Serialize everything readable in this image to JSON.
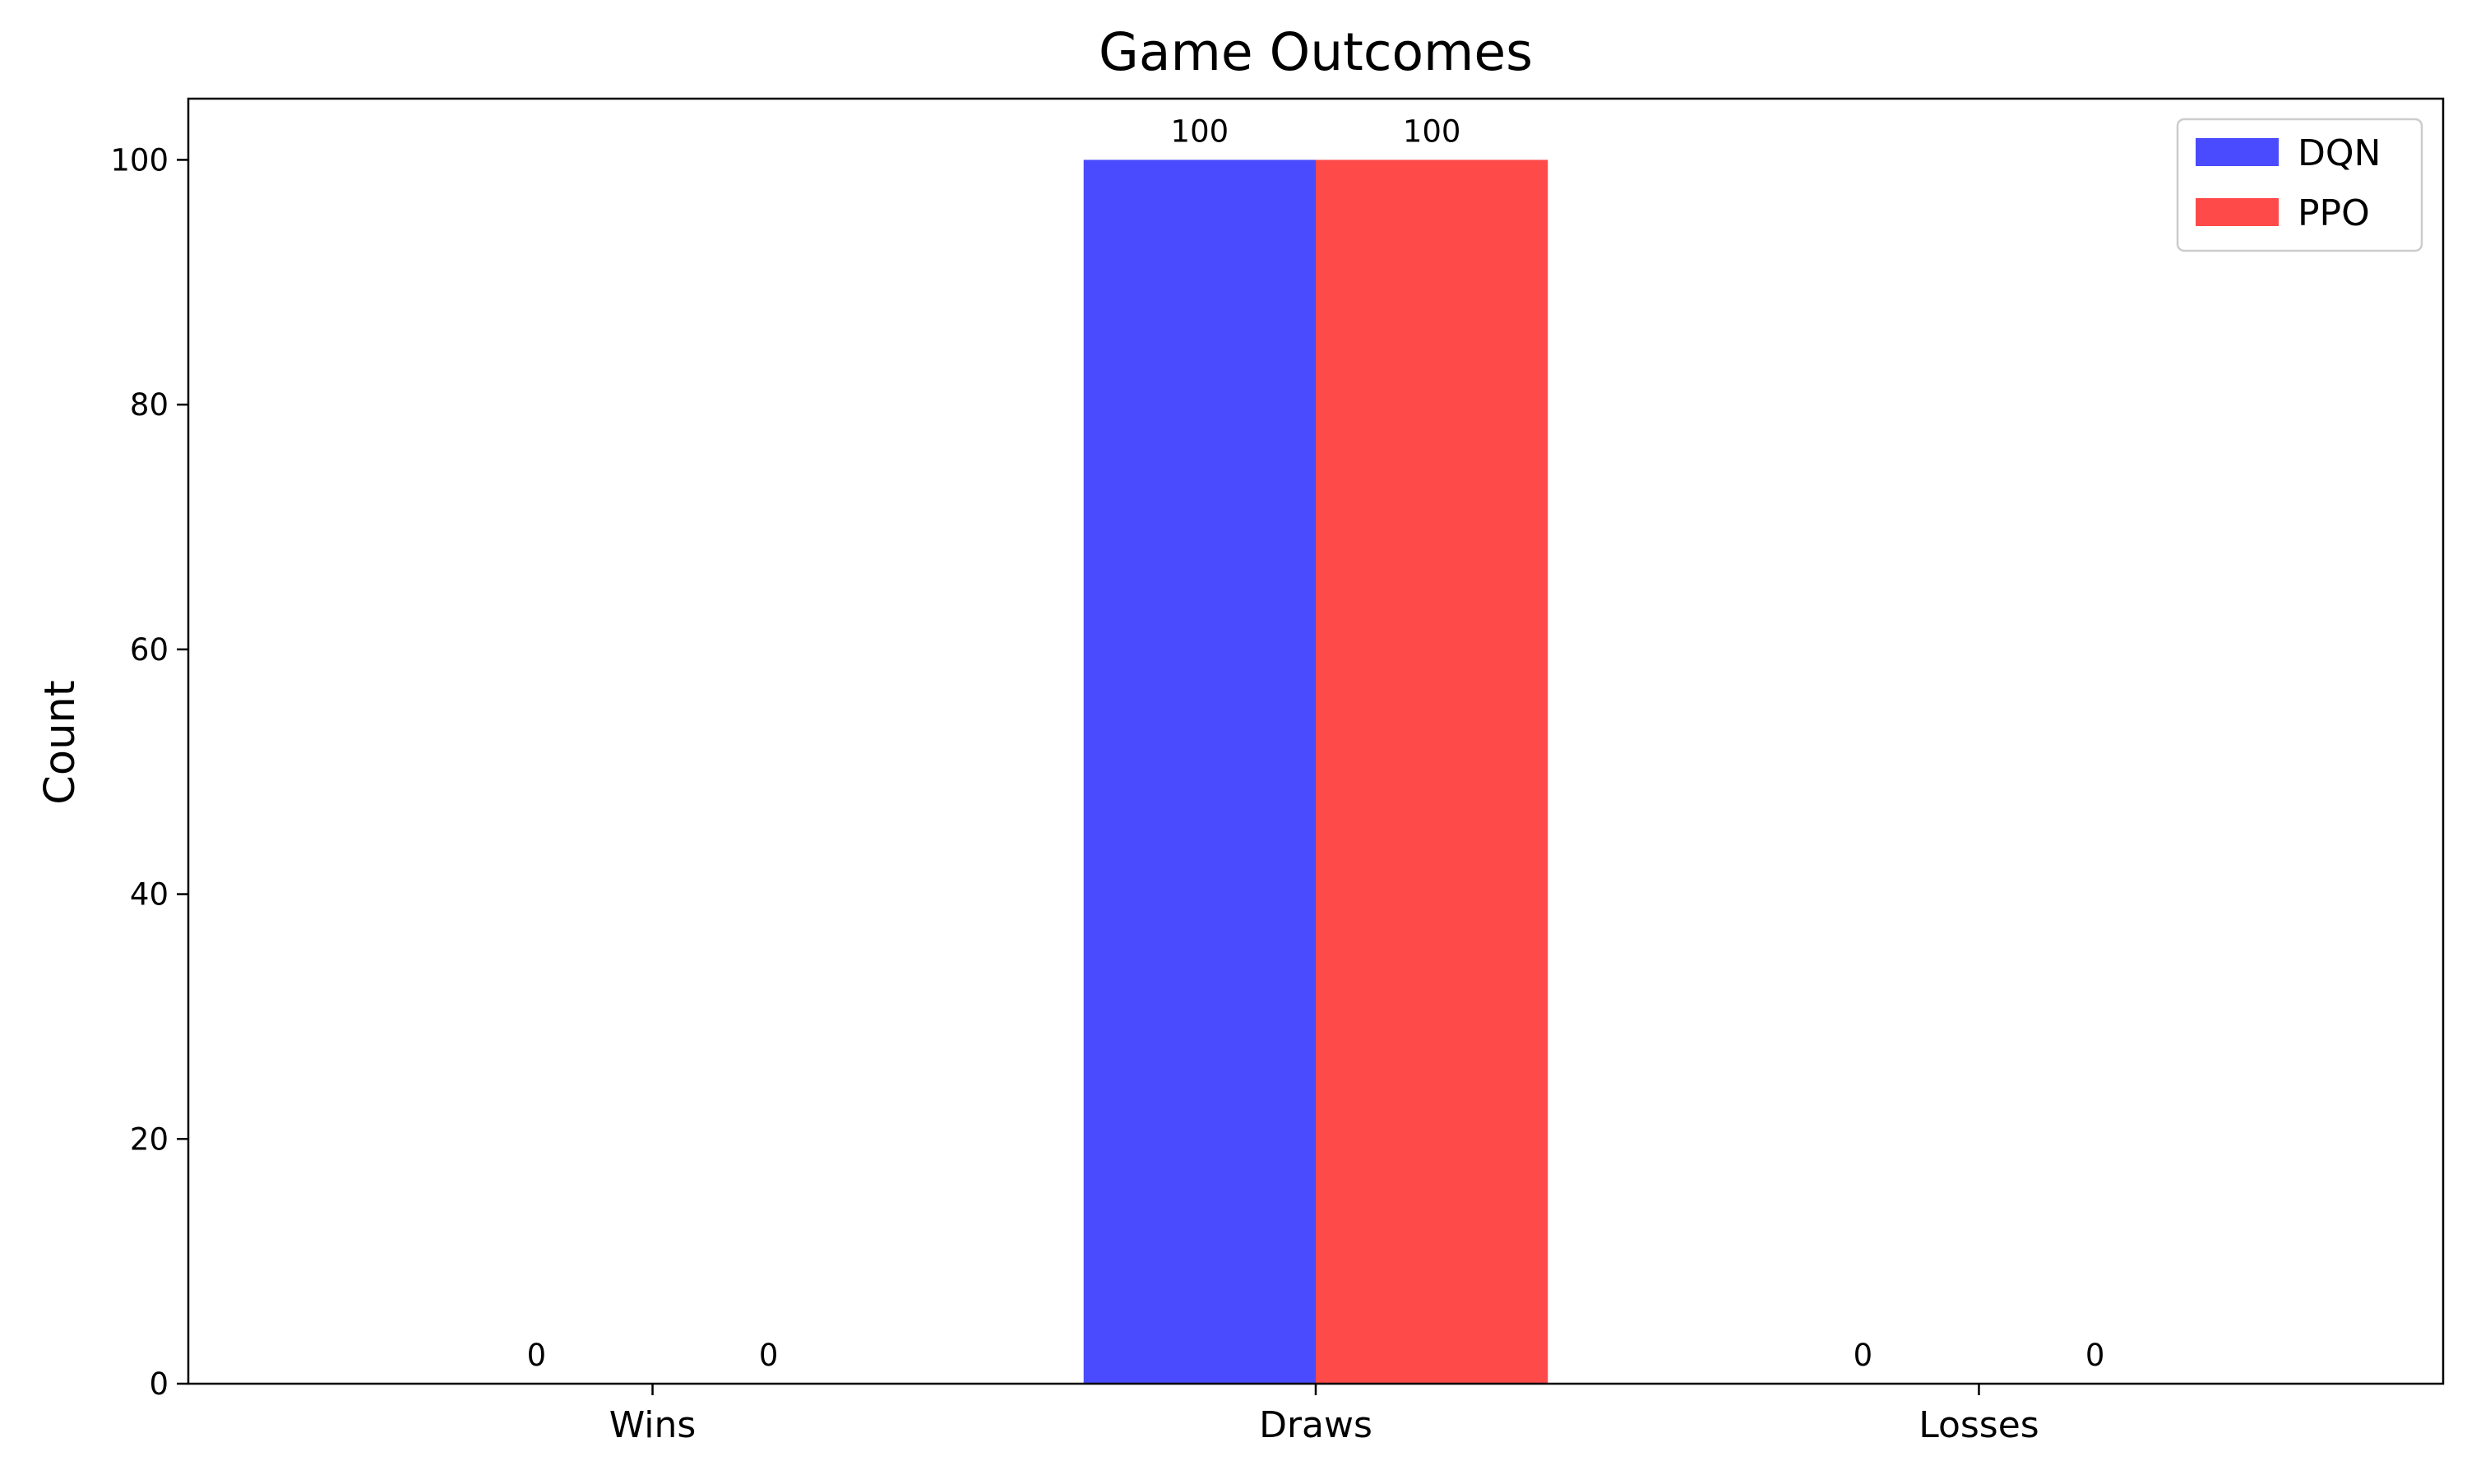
{
  "chart_data": {
    "type": "bar",
    "title": "Game Outcomes",
    "xlabel": "",
    "ylabel": "Count",
    "categories": [
      "Wins",
      "Draws",
      "Losses"
    ],
    "series": [
      {
        "name": "DQN",
        "values": [
          0,
          100,
          0
        ],
        "color": "#4a4aff"
      },
      {
        "name": "PPO",
        "values": [
          0,
          100,
          0
        ],
        "color": "#ff4a4a"
      }
    ],
    "data_labels": [
      [
        "0",
        "100",
        "0"
      ],
      [
        "0",
        "100",
        "0"
      ]
    ],
    "yticks": [
      0,
      20,
      40,
      60,
      80,
      100
    ],
    "ylim": [
      0,
      105
    ],
    "grid": false,
    "legend_position": "top-right"
  }
}
